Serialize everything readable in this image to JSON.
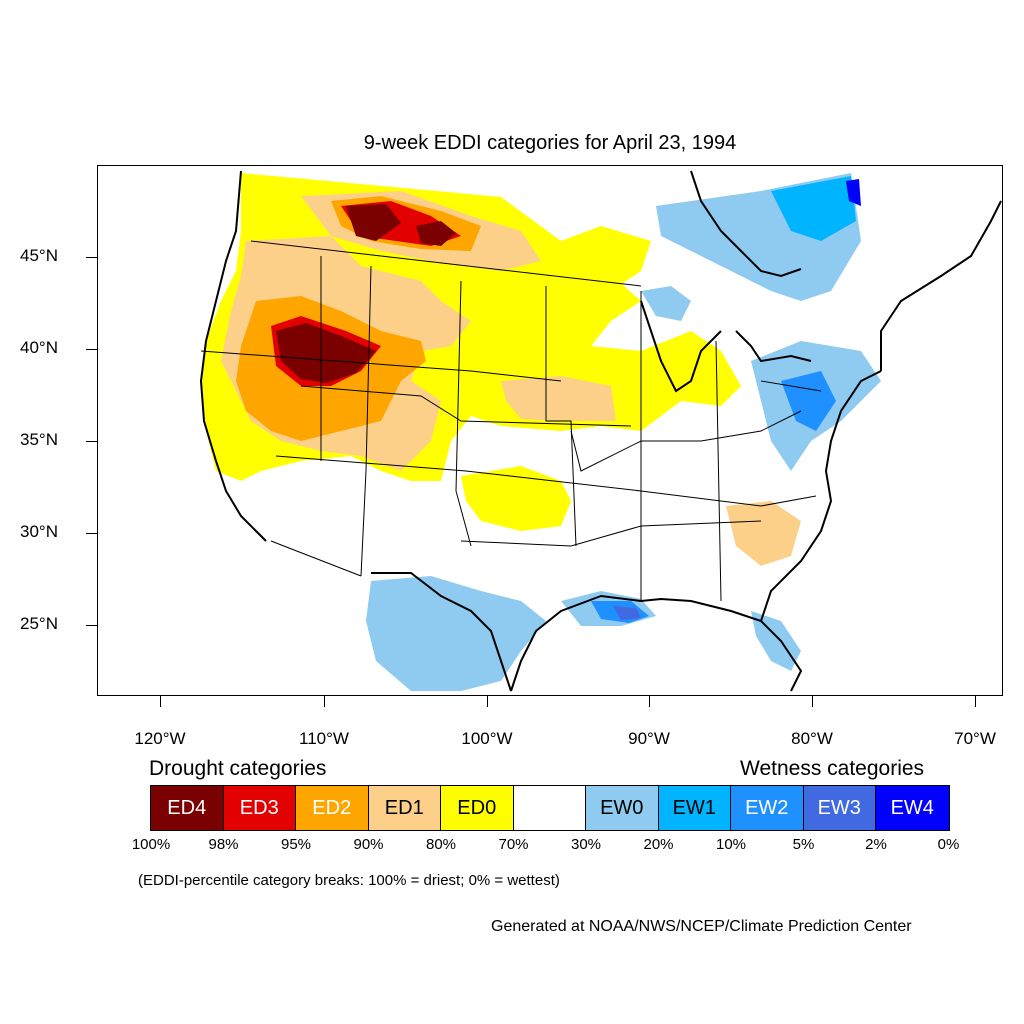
{
  "title": "9-week EDDI categories for April 23, 1994",
  "latitude_labels": [
    "45°N",
    "40°N",
    "35°N",
    "30°N",
    "25°N"
  ],
  "longitude_labels": [
    "120°W",
    "110°W",
    "100°W",
    "90°W",
    "80°W",
    "70°W"
  ],
  "legend": {
    "drought_heading": "Drought categories",
    "wetness_heading": "Wetness categories",
    "categories": [
      {
        "label": "ED4",
        "color": "#7b0000",
        "text_color": "#ffffff"
      },
      {
        "label": "ED3",
        "color": "#e30000",
        "text_color": "#ffffff"
      },
      {
        "label": "ED2",
        "color": "#ffa500",
        "text_color": "#ffffff"
      },
      {
        "label": "ED1",
        "color": "#fdd08a",
        "text_color": "#000000"
      },
      {
        "label": "ED0",
        "color": "#ffff00",
        "text_color": "#000000"
      },
      {
        "label": "",
        "color": "#ffffff",
        "text_color": "#000000"
      },
      {
        "label": "EW0",
        "color": "#8fcaf0",
        "text_color": "#000000"
      },
      {
        "label": "EW1",
        "color": "#00b4ff",
        "text_color": "#000000"
      },
      {
        "label": "EW2",
        "color": "#1e90ff",
        "text_color": "#ffffff"
      },
      {
        "label": "EW3",
        "color": "#4169e1",
        "text_color": "#ffffff"
      },
      {
        "label": "EW4",
        "color": "#0000ff",
        "text_color": "#ffffff"
      }
    ],
    "percentiles": [
      "100%",
      "98%",
      "95%",
      "90%",
      "80%",
      "70%",
      "30%",
      "20%",
      "10%",
      "5%",
      "2%",
      "0%"
    ]
  },
  "note": "(EDDI-percentile category breaks: 100% = driest; 0% = wettest)",
  "credit": "Generated at NOAA/NWS/NCEP/Climate Prediction Center"
}
